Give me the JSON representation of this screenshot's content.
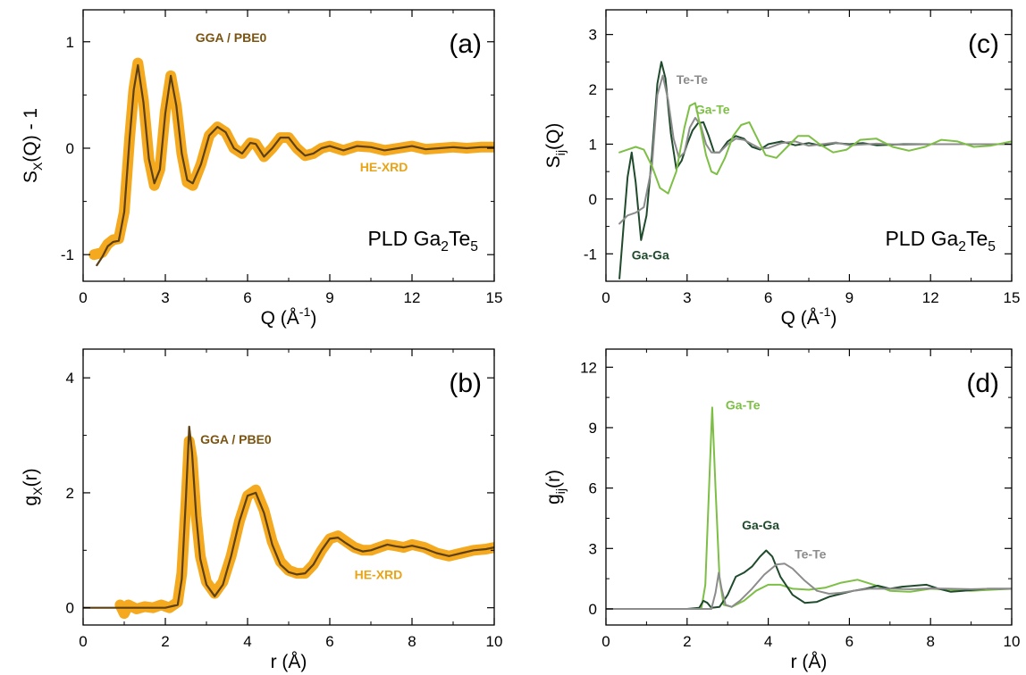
{
  "chart_data": [
    {
      "panel_label": "(a)",
      "type": "line",
      "xlabel": "Q (Å⁻¹)",
      "ylabel": "S_X(Q) - 1",
      "xlim": [
        0,
        15
      ],
      "ylim": [
        -1.25,
        1.3
      ],
      "xticks": [
        "0",
        "3",
        "6",
        "9",
        "12",
        "15"
      ],
      "yticks": [
        "-1",
        "0",
        "1"
      ],
      "sample_label": "PLD Ga₂Te₅",
      "annotations": [
        {
          "text": "GGA / PBE0",
          "color": "#7a5410",
          "x": 4.1,
          "y": 1.0
        },
        {
          "text": "HE-XRD",
          "color": "#e8a416",
          "x": 10.1,
          "y": -0.22
        }
      ],
      "series": [
        {
          "name": "HE-XRD",
          "color": "#f4a91e",
          "x": [
            0.4,
            0.7,
            0.9,
            1.1,
            1.3,
            1.5,
            1.7,
            1.85,
            2.0,
            2.2,
            2.4,
            2.6,
            2.8,
            3.0,
            3.2,
            3.4,
            3.6,
            3.8,
            4.0,
            4.3,
            4.6,
            4.9,
            5.2,
            5.5,
            5.8,
            6.1,
            6.3,
            6.6,
            6.9,
            7.2,
            7.5,
            7.8,
            8.1,
            8.4,
            8.7,
            9.0,
            9.5,
            10.0,
            10.5,
            11.0,
            11.5,
            12.0,
            12.5,
            13.0,
            13.5,
            14.0,
            14.5,
            15.0
          ],
          "y": [
            -1.0,
            -0.98,
            -0.9,
            -0.86,
            -0.85,
            -0.6,
            0.1,
            0.55,
            0.8,
            0.45,
            -0.1,
            -0.35,
            -0.2,
            0.35,
            0.68,
            0.4,
            -0.05,
            -0.32,
            -0.35,
            -0.15,
            0.12,
            0.2,
            0.15,
            0.0,
            -0.05,
            0.05,
            0.04,
            -0.08,
            0.0,
            0.1,
            0.1,
            0.0,
            -0.07,
            -0.05,
            0.0,
            0.02,
            -0.02,
            0.02,
            0.01,
            -0.02,
            0.0,
            0.02,
            -0.01,
            0.0,
            0.01,
            0.0,
            0.01,
            0.01
          ]
        },
        {
          "name": "GGA / PBE0",
          "color": "#5c4012",
          "x": [
            0.5,
            0.7,
            0.9,
            1.1,
            1.3,
            1.5,
            1.7,
            1.85,
            2.0,
            2.2,
            2.4,
            2.6,
            2.8,
            3.0,
            3.2,
            3.4,
            3.6,
            3.8,
            4.0,
            4.3,
            4.6,
            4.9,
            5.2,
            5.5,
            5.8,
            6.1,
            6.3,
            6.6,
            6.9,
            7.2,
            7.5,
            7.8,
            8.1,
            8.4,
            8.7,
            9.0,
            9.5,
            10.0,
            10.5,
            11.0,
            11.5,
            12.0,
            12.5,
            13.0,
            13.5,
            14.0,
            14.5,
            15.0
          ],
          "y": [
            -1.1,
            -1.02,
            -0.92,
            -0.88,
            -0.87,
            -0.6,
            0.1,
            0.55,
            0.78,
            0.43,
            -0.1,
            -0.33,
            -0.2,
            0.33,
            0.68,
            0.4,
            -0.05,
            -0.3,
            -0.33,
            -0.15,
            0.12,
            0.2,
            0.15,
            0.0,
            -0.05,
            0.05,
            0.04,
            -0.08,
            0.0,
            0.1,
            0.1,
            0.0,
            -0.07,
            -0.05,
            0.0,
            0.02,
            -0.02,
            0.02,
            0.01,
            -0.02,
            0.0,
            0.02,
            -0.01,
            0.0,
            0.01,
            0.0,
            0.01,
            0.01
          ]
        }
      ]
    },
    {
      "panel_label": "(b)",
      "type": "line",
      "xlabel": "r (Å)",
      "ylabel": "g_X(r)",
      "xlim": [
        0,
        10
      ],
      "ylim": [
        -0.3,
        4.5
      ],
      "xticks": [
        "0",
        "2",
        "4",
        "6",
        "8",
        "10"
      ],
      "yticks": [
        "0",
        "2",
        "4"
      ],
      "annotations": [
        {
          "text": "GGA / PBE0",
          "color": "#7a5410",
          "x": 2.85,
          "y": 2.85
        },
        {
          "text": "HE-XRD",
          "color": "#e8a416",
          "x": 6.6,
          "y": 0.5
        }
      ],
      "series": [
        {
          "name": "HE-XRD",
          "color": "#f4a91e",
          "x": [
            0.9,
            1.0,
            1.1,
            1.3,
            1.5,
            1.7,
            1.9,
            2.1,
            2.3,
            2.4,
            2.5,
            2.58,
            2.65,
            2.75,
            2.85,
            3.0,
            3.2,
            3.4,
            3.6,
            3.8,
            4.0,
            4.2,
            4.4,
            4.6,
            4.8,
            5.0,
            5.2,
            5.4,
            5.6,
            5.8,
            6.0,
            6.2,
            6.4,
            6.6,
            6.8,
            7.0,
            7.2,
            7.4,
            7.6,
            7.8,
            8.0,
            8.3,
            8.6,
            8.9,
            9.2,
            9.5,
            9.8,
            10.0
          ],
          "y": [
            0.05,
            -0.1,
            0.05,
            -0.02,
            0.02,
            0.0,
            0.05,
            0.0,
            0.1,
            0.6,
            1.8,
            2.9,
            2.6,
            1.6,
            0.9,
            0.45,
            0.25,
            0.45,
            0.9,
            1.5,
            1.95,
            2.05,
            1.7,
            1.15,
            0.8,
            0.65,
            0.6,
            0.6,
            0.75,
            1.0,
            1.2,
            1.25,
            1.15,
            1.05,
            1.0,
            1.0,
            1.05,
            1.1,
            1.08,
            1.05,
            1.1,
            1.05,
            0.95,
            0.9,
            0.95,
            1.0,
            1.02,
            1.05
          ]
        },
        {
          "name": "GGA / PBE0",
          "color": "#5c4012",
          "x": [
            0.0,
            0.5,
            1.0,
            1.5,
            2.0,
            2.3,
            2.4,
            2.5,
            2.58,
            2.65,
            2.75,
            2.85,
            3.0,
            3.2,
            3.4,
            3.6,
            3.8,
            4.0,
            4.2,
            4.4,
            4.6,
            4.8,
            5.0,
            5.2,
            5.4,
            5.6,
            5.8,
            6.0,
            6.2,
            6.4,
            6.6,
            6.8,
            7.0,
            7.2,
            7.4,
            7.6,
            7.8,
            8.0,
            8.3,
            8.6,
            8.9,
            9.2,
            9.5,
            9.8,
            10.0
          ],
          "y": [
            0.0,
            0.0,
            0.0,
            0.0,
            0.0,
            0.05,
            0.5,
            1.9,
            3.15,
            2.7,
            1.6,
            0.85,
            0.4,
            0.2,
            0.4,
            0.9,
            1.5,
            1.95,
            2.0,
            1.65,
            1.1,
            0.75,
            0.62,
            0.58,
            0.6,
            0.75,
            1.0,
            1.2,
            1.22,
            1.12,
            1.03,
            0.98,
            1.0,
            1.05,
            1.1,
            1.07,
            1.05,
            1.08,
            1.03,
            0.95,
            0.9,
            0.95,
            1.0,
            1.02,
            1.05
          ]
        }
      ]
    },
    {
      "panel_label": "(c)",
      "type": "line",
      "xlabel": "Q (Å⁻¹)",
      "ylabel": "S_ij(Q)",
      "xlim": [
        0,
        15
      ],
      "ylim": [
        -1.5,
        3.45
      ],
      "xticks": [
        "0",
        "3",
        "6",
        "9",
        "12",
        "15"
      ],
      "yticks": [
        "-1",
        "0",
        "1",
        "2",
        "3"
      ],
      "sample_label": "PLD Ga₂Te₅",
      "annotations": [
        {
          "text": "Te-Te",
          "color": "#8c8c8c",
          "x": 2.6,
          "y": 2.1
        },
        {
          "text": "Ga-Te",
          "color": "#7dbf45",
          "x": 3.3,
          "y": 1.55
        },
        {
          "text": "Ga-Ga",
          "color": "#1f4a2c",
          "x": 0.95,
          "y": -1.1
        }
      ],
      "series": [
        {
          "name": "Ga-Ga",
          "color": "#1f4a2c",
          "x": [
            0.5,
            0.65,
            0.8,
            0.95,
            1.1,
            1.3,
            1.5,
            1.7,
            1.9,
            2.05,
            2.2,
            2.4,
            2.6,
            2.8,
            3.0,
            3.2,
            3.4,
            3.6,
            3.8,
            4.0,
            4.2,
            4.5,
            4.8,
            5.1,
            5.4,
            5.7,
            6.0,
            6.5,
            7.0,
            7.5,
            8.0,
            8.5,
            9.0,
            9.5,
            10.0,
            11.0,
            12.0,
            13.0,
            14.0,
            15.0
          ],
          "y": [
            -1.45,
            -0.5,
            0.4,
            0.85,
            0.3,
            -0.75,
            -0.3,
            0.8,
            2.1,
            2.5,
            2.2,
            1.2,
            0.55,
            0.7,
            1.0,
            1.25,
            1.38,
            1.4,
            1.15,
            0.85,
            0.85,
            1.05,
            1.15,
            1.1,
            0.95,
            0.9,
            1.0,
            1.05,
            0.98,
            1.02,
            0.97,
            1.02,
            1.0,
            1.02,
            0.98,
            1.0,
            1.0,
            1.0,
            1.0,
            1.0
          ]
        },
        {
          "name": "Te-Te",
          "color": "#8c8c8c",
          "x": [
            0.5,
            0.8,
            1.1,
            1.4,
            1.7,
            1.9,
            2.1,
            2.3,
            2.5,
            2.7,
            2.9,
            3.1,
            3.3,
            3.5,
            3.7,
            3.9,
            4.2,
            4.5,
            4.8,
            5.1,
            5.4,
            5.7,
            6.0,
            6.5,
            7.0,
            7.5,
            8.0,
            8.5,
            9.0,
            10.0,
            11.0,
            12.0,
            13.0,
            14.0,
            15.0
          ],
          "y": [
            -0.45,
            -0.3,
            -0.25,
            -0.15,
            0.6,
            1.9,
            2.25,
            1.8,
            1.1,
            0.75,
            0.85,
            1.3,
            1.48,
            1.35,
            1.0,
            0.85,
            0.85,
            1.0,
            1.1,
            1.08,
            1.0,
            0.92,
            0.93,
            1.02,
            1.05,
            0.97,
            1.0,
            1.03,
            0.98,
            1.01,
            0.99,
            1.0,
            1.0,
            1.0,
            1.0
          ]
        },
        {
          "name": "Ga-Te",
          "color": "#7dbf45",
          "x": [
            0.5,
            0.8,
            1.1,
            1.4,
            1.7,
            2.0,
            2.3,
            2.6,
            2.9,
            3.1,
            3.3,
            3.5,
            3.7,
            3.9,
            4.1,
            4.4,
            4.7,
            5.0,
            5.3,
            5.6,
            5.9,
            6.3,
            6.7,
            7.1,
            7.5,
            7.9,
            8.4,
            8.9,
            9.4,
            10.0,
            10.6,
            11.2,
            11.8,
            12.4,
            13.0,
            13.6,
            14.2,
            15.0
          ],
          "y": [
            0.85,
            0.9,
            0.95,
            0.9,
            0.6,
            0.2,
            0.1,
            0.5,
            1.3,
            1.7,
            1.75,
            1.3,
            0.8,
            0.5,
            0.45,
            0.75,
            1.15,
            1.35,
            1.4,
            1.1,
            0.8,
            0.75,
            0.95,
            1.15,
            1.15,
            1.0,
            0.85,
            0.9,
            1.08,
            1.1,
            0.95,
            0.88,
            0.95,
            1.08,
            1.05,
            0.95,
            0.97,
            1.05
          ]
        }
      ]
    },
    {
      "panel_label": "(d)",
      "type": "line",
      "xlabel": "r (Å)",
      "ylabel": "g_ij(r)",
      "xlim": [
        0,
        10
      ],
      "ylim": [
        -0.8,
        12.9
      ],
      "xticks": [
        "0",
        "2",
        "4",
        "6",
        "8",
        "10"
      ],
      "yticks": [
        "0",
        "3",
        "6",
        "9",
        "12"
      ],
      "annotations": [
        {
          "text": "Ga-Te",
          "color": "#7dbf45",
          "x": 2.95,
          "y": 9.9
        },
        {
          "text": "Ga-Ga",
          "color": "#1f4a2c",
          "x": 3.35,
          "y": 3.95
        },
        {
          "text": "Te-Te",
          "color": "#8c8c8c",
          "x": 4.65,
          "y": 2.5
        }
      ],
      "series": [
        {
          "name": "Ga-Te",
          "color": "#7dbf45",
          "x": [
            0.0,
            2.0,
            2.35,
            2.45,
            2.55,
            2.62,
            2.7,
            2.8,
            2.9,
            3.1,
            3.4,
            3.7,
            4.0,
            4.3,
            4.6,
            5.0,
            5.4,
            5.8,
            6.2,
            6.6,
            7.0,
            7.5,
            8.0,
            8.5,
            9.0,
            9.5,
            10.0
          ],
          "y": [
            0.0,
            0.0,
            0.0,
            1.2,
            6.5,
            10.0,
            6.0,
            1.5,
            0.2,
            0.1,
            0.4,
            0.9,
            1.2,
            1.2,
            1.0,
            0.95,
            1.05,
            1.3,
            1.45,
            1.2,
            0.9,
            0.85,
            1.0,
            0.95,
            0.9,
            0.95,
            1.0
          ]
        },
        {
          "name": "Ga-Ga",
          "color": "#1f4a2c",
          "x": [
            0.0,
            2.0,
            2.3,
            2.4,
            2.5,
            2.6,
            2.8,
            3.0,
            3.2,
            3.4,
            3.6,
            3.8,
            3.95,
            4.1,
            4.3,
            4.6,
            4.9,
            5.2,
            5.5,
            5.8,
            6.1,
            6.4,
            6.7,
            7.0,
            7.3,
            7.6,
            7.9,
            8.2,
            8.5,
            8.8,
            9.1,
            9.4,
            10.0
          ],
          "y": [
            0.0,
            0.0,
            0.05,
            0.4,
            0.3,
            0.05,
            0.1,
            0.7,
            1.6,
            1.8,
            2.1,
            2.6,
            2.9,
            2.6,
            1.6,
            0.7,
            0.3,
            0.35,
            0.6,
            0.75,
            0.9,
            1.0,
            1.15,
            1.0,
            1.1,
            1.15,
            1.2,
            1.0,
            0.85,
            0.9,
            0.95,
            1.0,
            1.0
          ]
        },
        {
          "name": "Te-Te",
          "color": "#8c8c8c",
          "x": [
            0.0,
            2.0,
            2.6,
            2.7,
            2.78,
            2.85,
            2.95,
            3.1,
            3.3,
            3.6,
            3.9,
            4.2,
            4.4,
            4.6,
            4.9,
            5.2,
            5.5,
            5.8,
            6.1,
            6.5,
            7.0,
            7.5,
            8.0,
            8.5,
            9.0,
            9.5,
            10.0
          ],
          "y": [
            0.0,
            0.0,
            0.0,
            0.8,
            1.8,
            1.0,
            0.2,
            0.1,
            0.4,
            1.0,
            1.7,
            2.2,
            2.25,
            2.0,
            1.4,
            0.9,
            0.75,
            0.8,
            0.9,
            1.0,
            1.0,
            0.98,
            1.02,
            1.0,
            0.98,
            1.0,
            1.0
          ]
        }
      ]
    }
  ]
}
